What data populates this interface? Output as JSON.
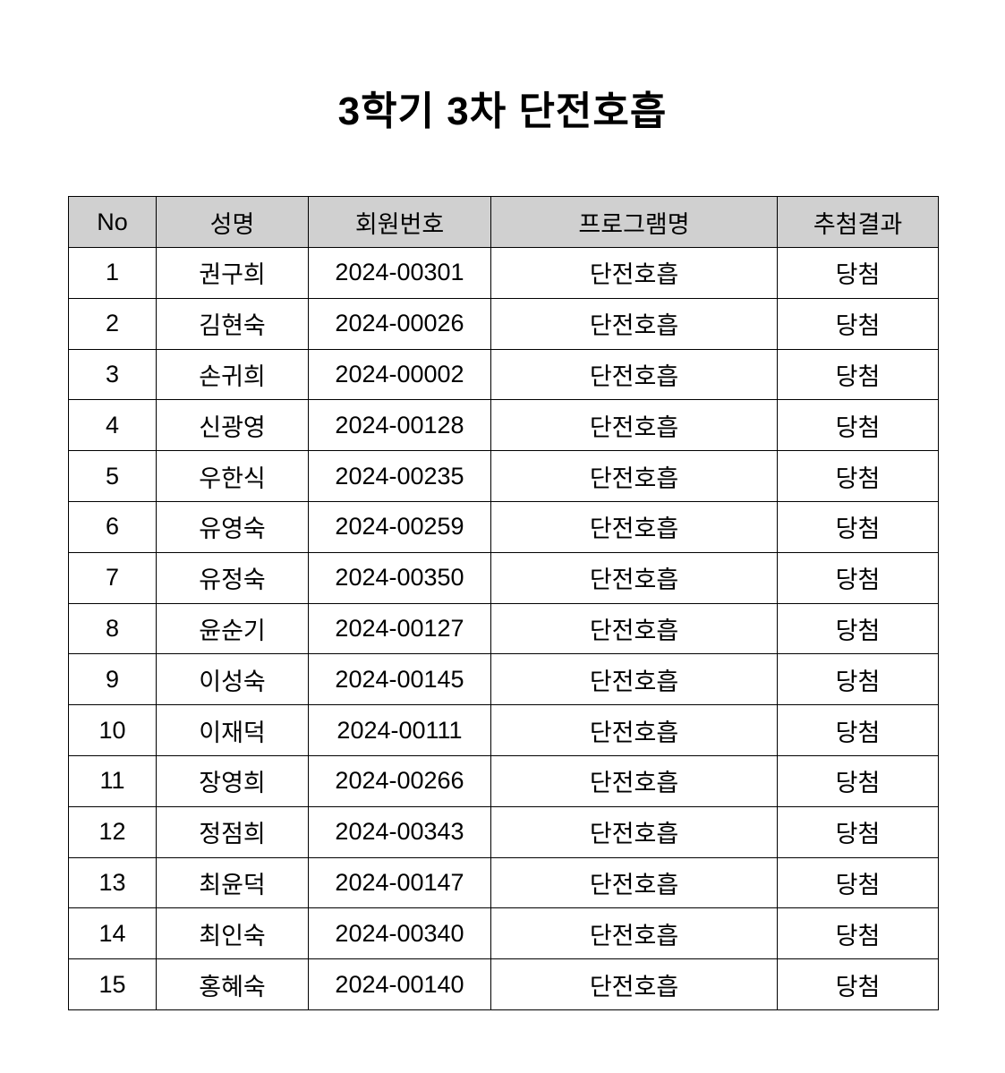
{
  "title": "3학기 3차 단전호흡",
  "table": {
    "header_color": "#d0d0d0",
    "columns": [
      "No",
      "성명",
      "회원번호",
      "프로그램명",
      "추첨결과"
    ],
    "rows": [
      [
        "1",
        "권구희",
        "2024-00301",
        "단전호흡",
        "당첨"
      ],
      [
        "2",
        "김현숙",
        "2024-00026",
        "단전호흡",
        "당첨"
      ],
      [
        "3",
        "손귀희",
        "2024-00002",
        "단전호흡",
        "당첨"
      ],
      [
        "4",
        "신광영",
        "2024-00128",
        "단전호흡",
        "당첨"
      ],
      [
        "5",
        "우한식",
        "2024-00235",
        "단전호흡",
        "당첨"
      ],
      [
        "6",
        "유영숙",
        "2024-00259",
        "단전호흡",
        "당첨"
      ],
      [
        "7",
        "유정숙",
        "2024-00350",
        "단전호흡",
        "당첨"
      ],
      [
        "8",
        "윤순기",
        "2024-00127",
        "단전호흡",
        "당첨"
      ],
      [
        "9",
        "이성숙",
        "2024-00145",
        "단전호흡",
        "당첨"
      ],
      [
        "10",
        "이재덕",
        "2024-00111",
        "단전호흡",
        "당첨"
      ],
      [
        "11",
        "장영희",
        "2024-00266",
        "단전호흡",
        "당첨"
      ],
      [
        "12",
        "정점희",
        "2024-00343",
        "단전호흡",
        "당첨"
      ],
      [
        "13",
        "최윤덕",
        "2024-00147",
        "단전호흡",
        "당첨"
      ],
      [
        "14",
        "최인숙",
        "2024-00340",
        "단전호흡",
        "당첨"
      ],
      [
        "15",
        "홍혜숙",
        "2024-00140",
        "단전호흡",
        "당첨"
      ]
    ]
  }
}
